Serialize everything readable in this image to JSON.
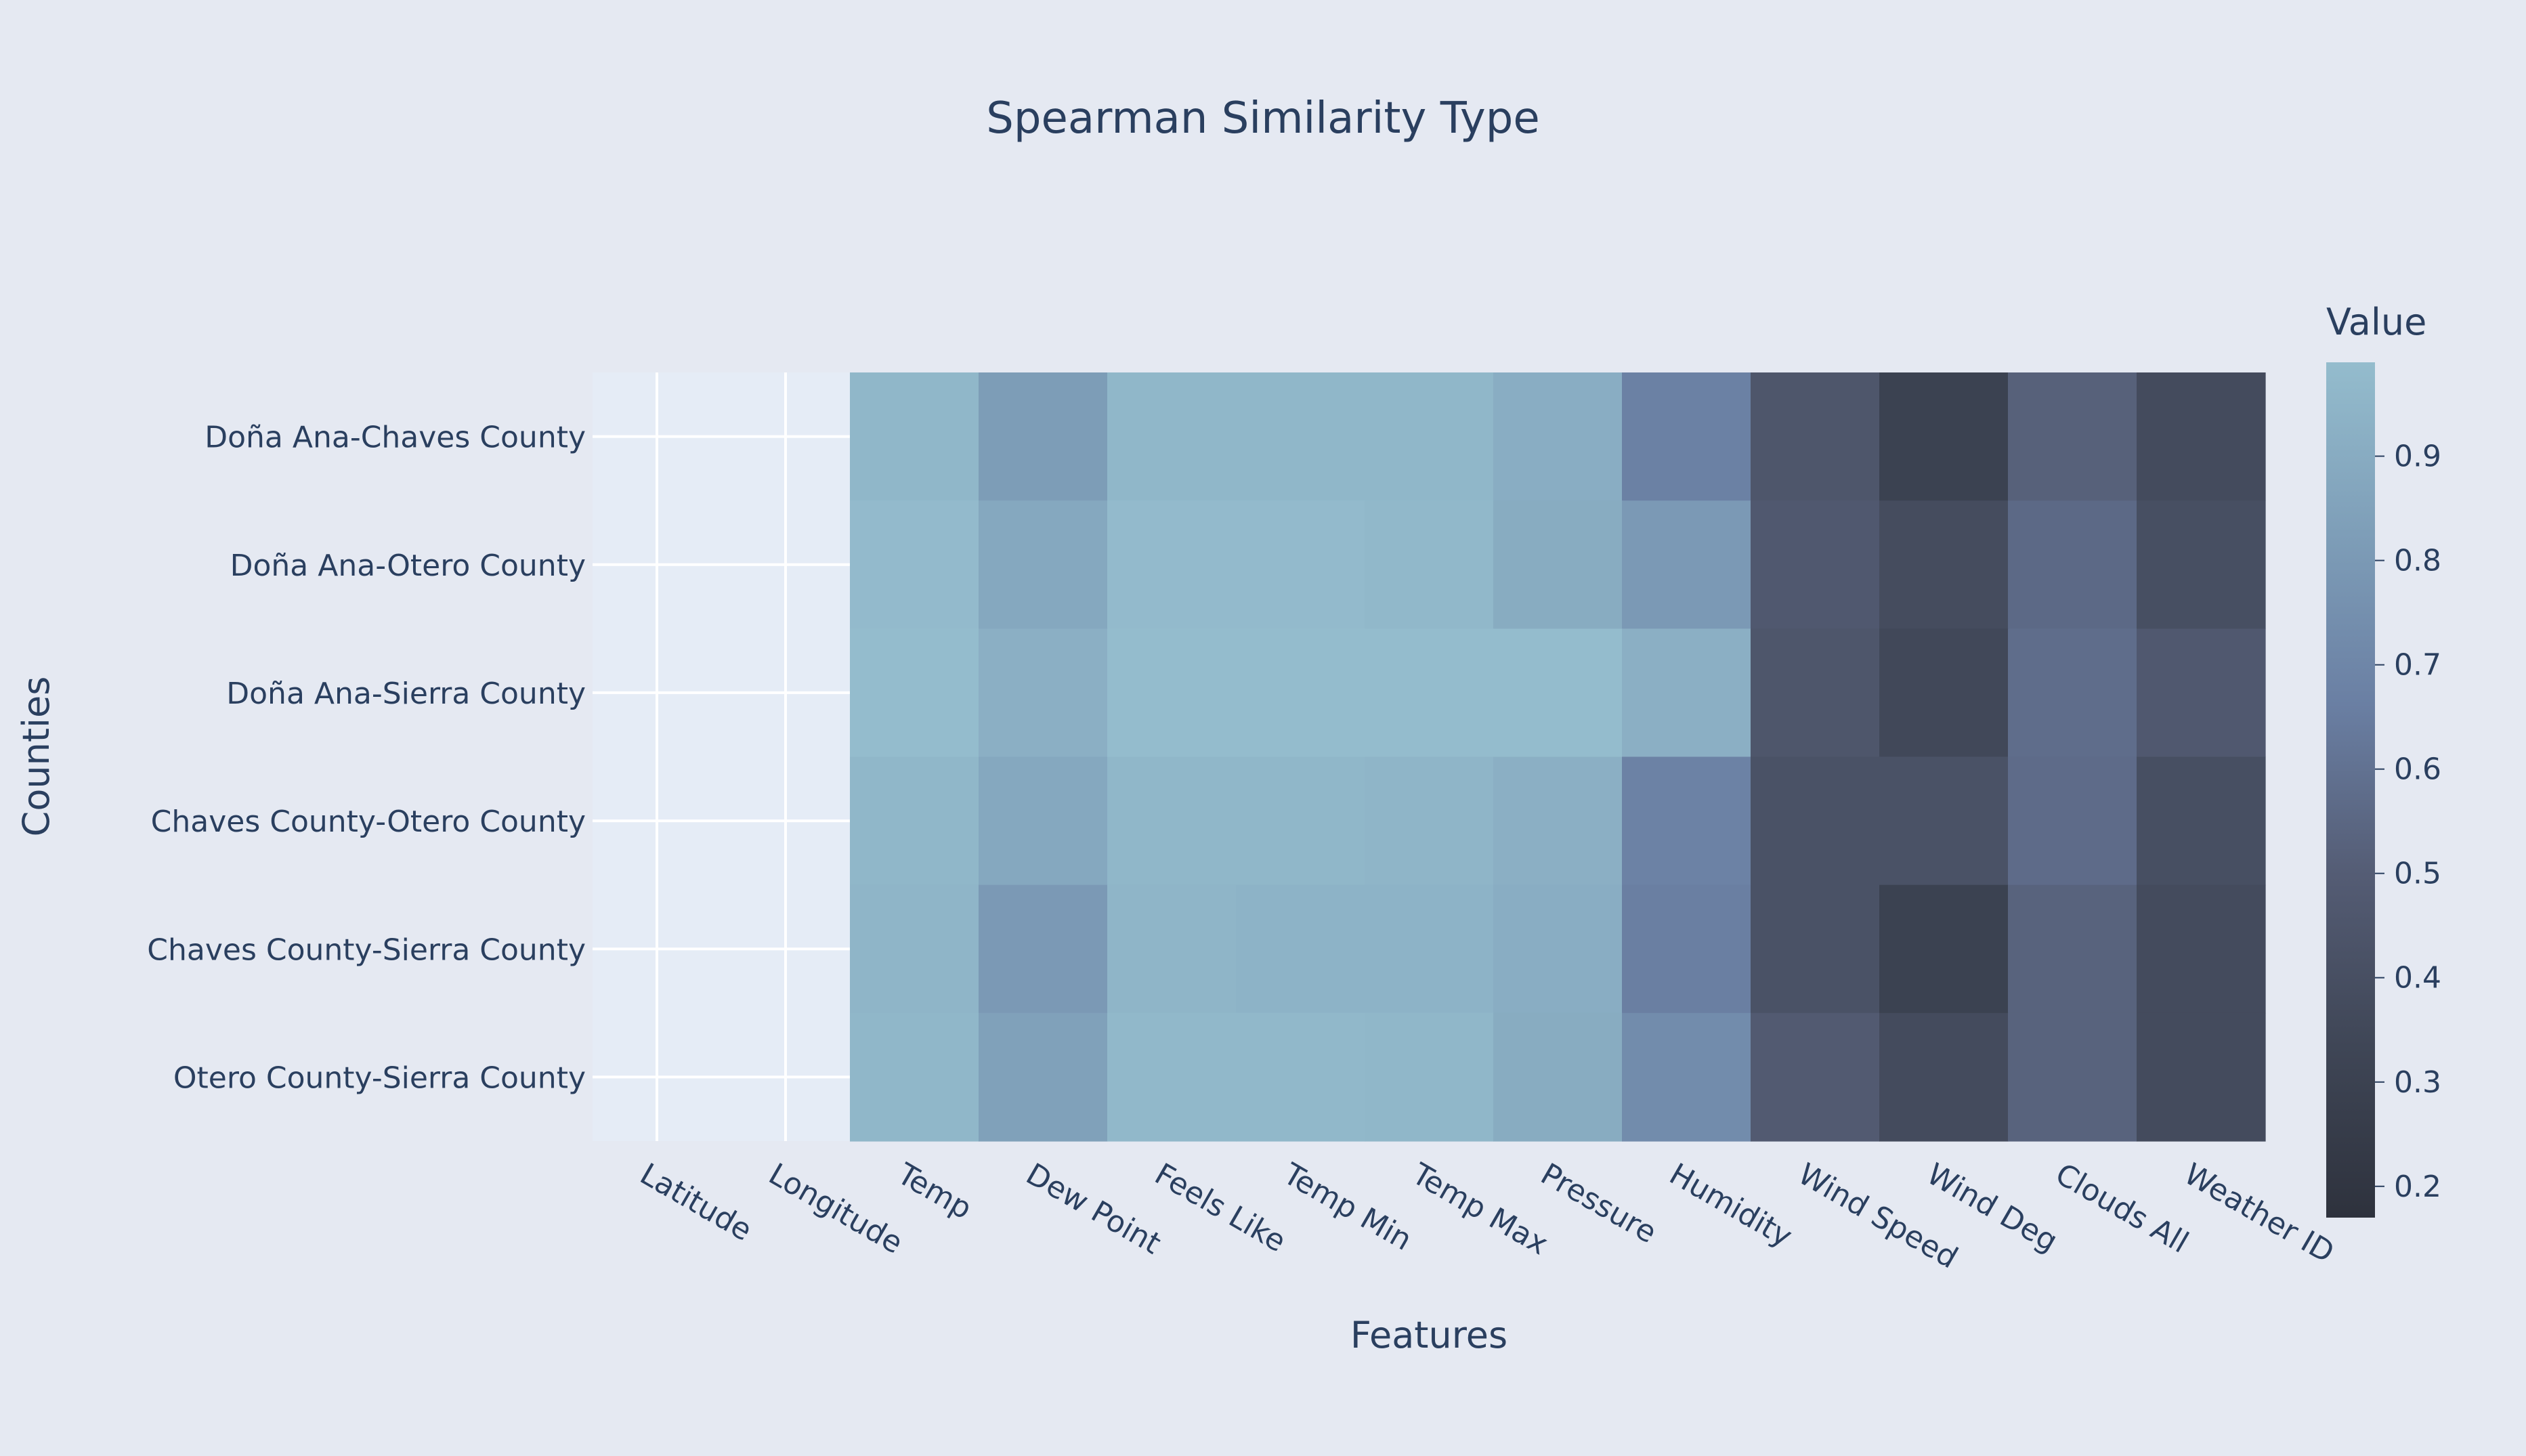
{
  "chart_data": {
    "type": "heatmap",
    "title": "Spearman Similarity Type",
    "xlabel": "Features",
    "ylabel": "Counties",
    "x": [
      "Latitude",
      "Longitude",
      "Temp",
      "Dew Point",
      "Feels Like",
      "Temp Min",
      "Temp Max",
      "Pressure",
      "Humidity",
      "Wind Speed",
      "Wind Deg",
      "Clouds All",
      "Weather ID"
    ],
    "y": [
      "Doña Ana-Chaves County",
      "Doña Ana-Otero County",
      "Doña Ana-Sierra County",
      "Chaves County-Otero County",
      "Chaves County-Sierra County",
      "Otero County-Sierra County"
    ],
    "z": [
      [
        null,
        null,
        0.96,
        0.82,
        0.96,
        0.96,
        0.96,
        0.91,
        0.67,
        0.45,
        0.3,
        0.52,
        0.37
      ],
      [
        null,
        null,
        0.98,
        0.88,
        0.98,
        0.98,
        0.97,
        0.9,
        0.8,
        0.47,
        0.38,
        0.56,
        0.4
      ],
      [
        null,
        null,
        0.99,
        0.92,
        0.99,
        0.99,
        0.99,
        0.99,
        0.92,
        0.45,
        0.35,
        0.58,
        0.47
      ],
      [
        null,
        null,
        0.96,
        0.88,
        0.96,
        0.96,
        0.95,
        0.92,
        0.68,
        0.42,
        0.42,
        0.57,
        0.4
      ],
      [
        null,
        null,
        0.95,
        0.8,
        0.95,
        0.94,
        0.94,
        0.91,
        0.66,
        0.42,
        0.3,
        0.53,
        0.37
      ],
      [
        null,
        null,
        0.96,
        0.84,
        0.97,
        0.97,
        0.96,
        0.9,
        0.73,
        0.48,
        0.37,
        0.53,
        0.37
      ]
    ],
    "zmin": 0.17,
    "zmax": 0.99,
    "colorbar": {
      "title": "Value",
      "ticks": [
        0.2,
        0.3,
        0.4,
        0.5,
        0.6,
        0.7,
        0.8,
        0.9
      ]
    },
    "colorscale": [
      "#2e323d",
      "#3f4656",
      "#545c74",
      "#6a7fa3",
      "#7e9eb8",
      "#94bccd"
    ],
    "missing_color": "#e5ecf6",
    "grid": true
  }
}
